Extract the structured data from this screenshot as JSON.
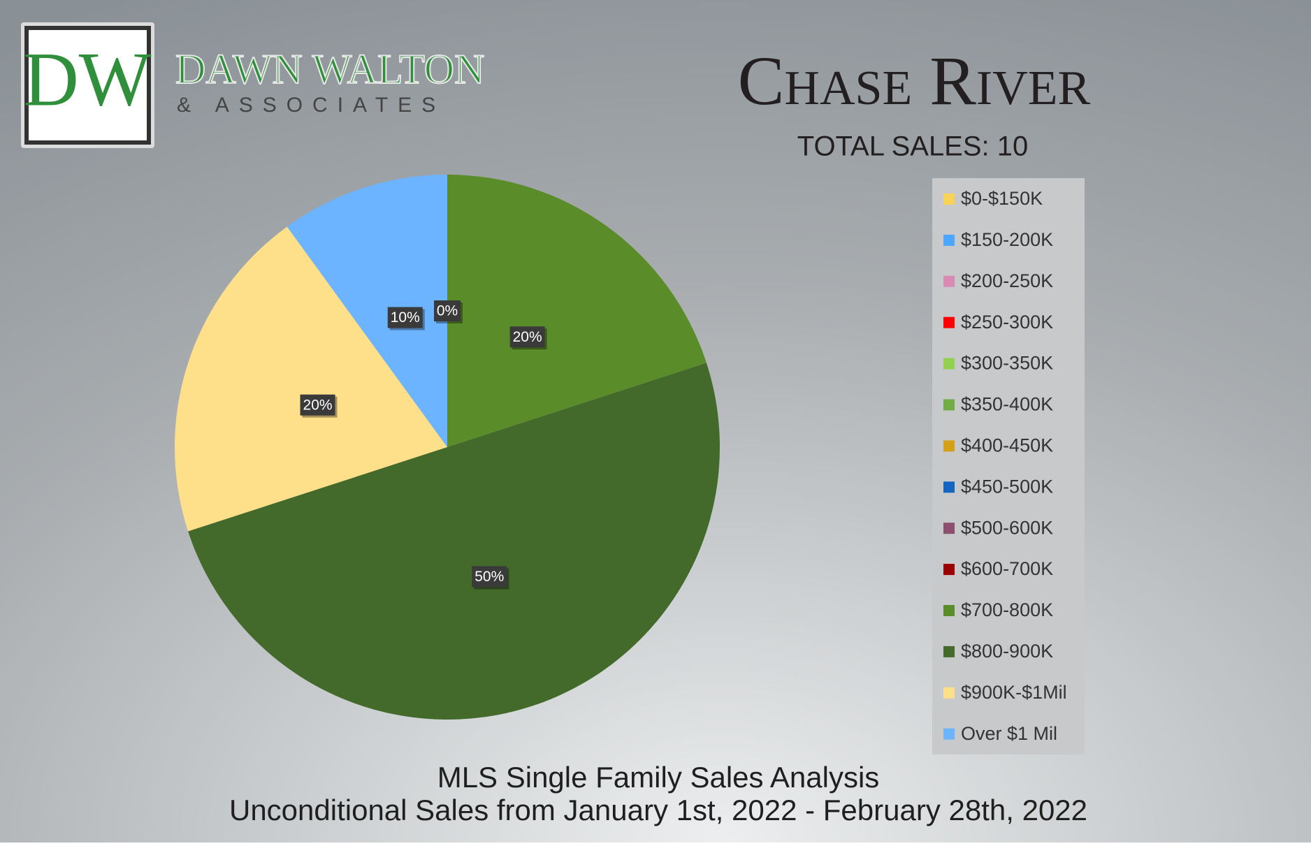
{
  "logo": {
    "monogram": "DW",
    "name": "DAWN WALTON",
    "tagline": "& ASSOCIATES"
  },
  "chart_data": {
    "type": "pie",
    "title": "Chase River",
    "subtitle": "TOTAL SALES: 10",
    "footer": [
      "MLS Single Family Sales Analysis",
      "Unconditional Sales from January 1st, 2022 - February 28th, 2022"
    ],
    "categories": [
      "$0-$150K",
      "$150-200K",
      "$200-250K",
      "$250-300K",
      "$300-350K",
      "$350-400K",
      "$400-450K",
      "$450-500K",
      "$500-600K",
      "$600-700K",
      "$700-800K",
      "$800-900K",
      "$900K-$1Mil",
      "Over $1 Mil"
    ],
    "values": [
      0,
      0,
      0,
      0,
      0,
      0,
      0,
      0,
      0,
      0,
      20,
      50,
      20,
      10
    ],
    "value_labels": [
      null,
      null,
      null,
      null,
      null,
      null,
      null,
      null,
      null,
      "0%",
      "20%",
      "50%",
      "20%",
      "10%"
    ],
    "colors": [
      "#f7d358",
      "#4da6ff",
      "#d98cb3",
      "#ff0000",
      "#92d050",
      "#70ad47",
      "#d4a017",
      "#1565c0",
      "#8b4f6f",
      "#990000",
      "#5b8c2a",
      "#436a2b",
      "#ffe08a",
      "#6cb4ff"
    ],
    "legend": "right"
  }
}
